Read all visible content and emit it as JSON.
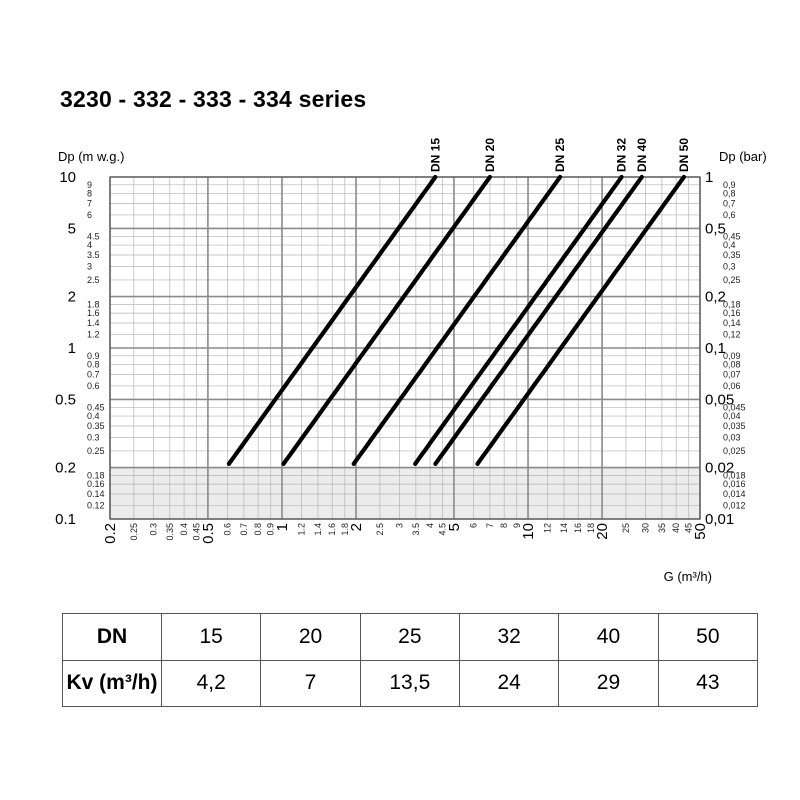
{
  "title": "3230 - 332 - 333 - 334 series",
  "chart_data": {
    "type": "line",
    "title": "3230 - 332 - 333 - 334 series",
    "xlabel": "G (m³/h)",
    "ylabel_left": "Dp (m w.g.)",
    "ylabel_right": "Dp (bar)",
    "x_scale": "log",
    "y_scale": "log",
    "xlim": [
      0.2,
      50
    ],
    "ylim": [
      0.1,
      10
    ],
    "grid": true,
    "shaded_region": {
      "y_from": 0.1,
      "y_to": 0.2,
      "color": "#ececec"
    },
    "x_major_ticks": [
      "0.2",
      "0.5",
      "1",
      "2",
      "5",
      "10",
      "20",
      "50"
    ],
    "x_minor_ticks": [
      "0.25",
      "0.3",
      "0.35",
      "0.4",
      "0.45",
      "0.6",
      "0.7",
      "0.8",
      "0.9",
      "1.2",
      "1.4",
      "1.6",
      "1.8",
      "2.5",
      "3",
      "3.5",
      "4",
      "4.5",
      "6",
      "7",
      "8",
      "9",
      "12",
      "14",
      "16",
      "18",
      "25",
      "30",
      "35",
      "40",
      "45"
    ],
    "y_left_major_ticks": [
      "0.1",
      "0.2",
      "0.5",
      "1",
      "2",
      "5",
      "10"
    ],
    "y_left_minor_ticks": [
      "0.12",
      "0.14",
      "0.16",
      "0.18",
      "0.25",
      "0.3",
      "0.35",
      "0.4",
      "0.45",
      "0.6",
      "0.7",
      "0.8",
      "0.9",
      "1.2",
      "1.4",
      "1.6",
      "1.8",
      "2.5",
      "3",
      "3.5",
      "4",
      "4.5",
      "6",
      "7",
      "8",
      "9"
    ],
    "y_right_major_ticks": [
      "0,01",
      "0,02",
      "0,05",
      "0,1",
      "0,2",
      "0,5",
      "1"
    ],
    "y_right_minor_ticks": [
      "0,012",
      "0,014",
      "0,016",
      "0,018",
      "0,025",
      "0,03",
      "0,035",
      "0,04",
      "0,045",
      "0,06",
      "0,07",
      "0,08",
      "0,09",
      "0,12",
      "0,14",
      "0,16",
      "0,18",
      "0,25",
      "0,3",
      "0,35",
      "0,4",
      "0,45",
      "0,6",
      "0,7",
      "0,8",
      "0,9"
    ],
    "series": [
      {
        "name": "DN 15",
        "kv": 4.2,
        "dp_start": 0.21,
        "dp_end": 10
      },
      {
        "name": "DN 20",
        "kv": 7,
        "dp_start": 0.21,
        "dp_end": 10
      },
      {
        "name": "DN 25",
        "kv": 13.5,
        "dp_start": 0.21,
        "dp_end": 10
      },
      {
        "name": "DN 32",
        "kv": 24,
        "dp_start": 0.21,
        "dp_end": 10
      },
      {
        "name": "DN 40",
        "kv": 29,
        "dp_start": 0.21,
        "dp_end": 10
      },
      {
        "name": "DN 50",
        "kv": 43,
        "dp_start": 0.21,
        "dp_end": 10
      }
    ]
  },
  "table": {
    "row1_label": "DN",
    "row1_values": [
      "15",
      "20",
      "25",
      "32",
      "40",
      "50"
    ],
    "row2_label": "Kv (m³/h)",
    "row2_values": [
      "4,2",
      "7",
      "13,5",
      "24",
      "29",
      "43"
    ]
  }
}
